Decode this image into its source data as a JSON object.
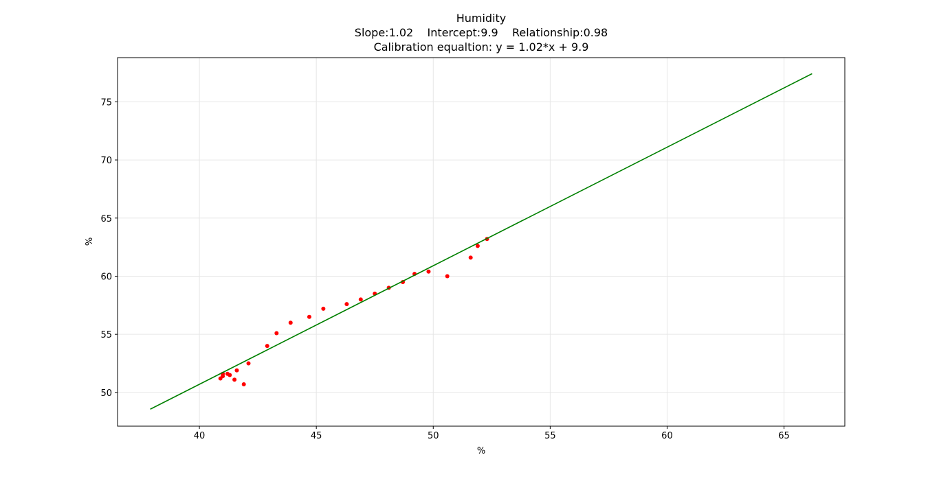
{
  "chart_data": {
    "type": "scatter",
    "title": "Humidity",
    "subtitle_lines": [
      "Slope:1.02    Intercept:9.9    Relationship:0.98",
      "Calibration equaltion: y = 1.02*x + 9.9"
    ],
    "xlabel": "%",
    "ylabel": "%",
    "xlim": [
      36.5,
      67.6
    ],
    "ylim": [
      47.1,
      78.8
    ],
    "xticks": [
      40,
      45,
      50,
      55,
      60,
      65
    ],
    "yticks": [
      50,
      55,
      60,
      65,
      70,
      75
    ],
    "grid": true,
    "series": [
      {
        "kind": "points",
        "color": "#ff0000",
        "x": [
          40.9,
          41.0,
          41.0,
          41.2,
          41.3,
          41.5,
          41.6,
          41.9,
          42.1,
          42.9,
          43.3,
          43.9,
          44.7,
          45.3,
          46.3,
          46.9,
          47.5,
          48.1,
          48.7,
          49.2,
          49.8,
          50.6,
          51.6,
          51.9,
          52.3
        ],
        "y": [
          51.2,
          51.4,
          51.6,
          51.6,
          51.5,
          51.1,
          51.9,
          50.7,
          52.5,
          54.0,
          55.1,
          56.0,
          56.5,
          57.2,
          57.6,
          58.0,
          58.5,
          59.0,
          59.5,
          60.2,
          60.4,
          60.0,
          61.6,
          62.6,
          63.2
        ]
      },
      {
        "kind": "line",
        "color": "#008000",
        "x": [
          37.9,
          66.2
        ],
        "y": [
          48.56,
          77.42
        ]
      }
    ]
  }
}
